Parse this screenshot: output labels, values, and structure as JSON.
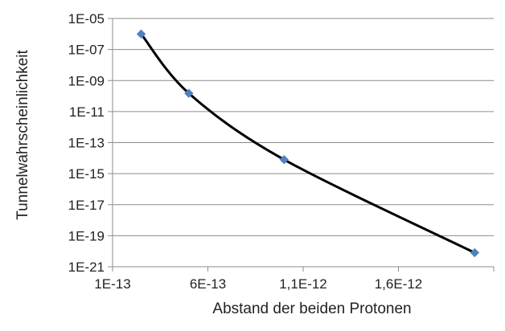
{
  "chart_data": {
    "type": "scatter",
    "title": "",
    "xlabel": "Abstand der beiden Protonen",
    "ylabel": "Tunnelwahrscheinlichkeit",
    "yscale": "log",
    "xlim": [
      1e-13,
      2.1e-12
    ],
    "ylim": [
      1e-21,
      1e-05
    ],
    "x_tick_labels": [
      "1E-13",
      "6E-13",
      "1,1E-12",
      "1,6E-12"
    ],
    "y_tick_labels": [
      "1E-05",
      "1E-07",
      "1E-09",
      "1E-11",
      "1E-13",
      "1E-15",
      "1E-17",
      "1E-19",
      "1E-21"
    ],
    "grid": true,
    "legend": "none",
    "series": [
      {
        "marker": "diamond",
        "line": "smooth",
        "color": "#4f81bd",
        "line_color": "#000000",
        "x": [
          2.5e-13,
          5e-13,
          1e-12,
          2e-12
        ],
        "y": [
          1e-06,
          1.5e-10,
          8e-15,
          8e-21
        ]
      }
    ]
  }
}
